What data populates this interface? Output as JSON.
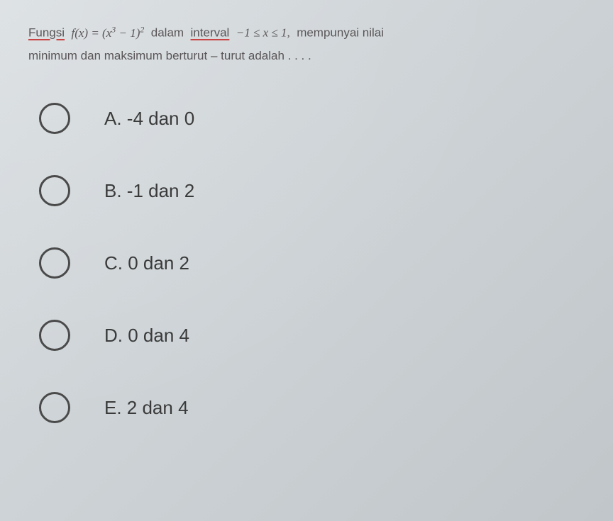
{
  "question": {
    "line1_parts": {
      "fungsi": "Fungsi",
      "formula": "f(x) = (x³ − 1)²",
      "dalam": "dalam",
      "interval": "interval",
      "range": "−1 ≤ x ≤ 1,",
      "mempunyai": "mempunyai  nilai"
    },
    "line2": "minimum dan maksimum berturut – turut adalah . . . ."
  },
  "options": [
    {
      "label": "A. -4 dan 0"
    },
    {
      "label": "B. -1 dan 2"
    },
    {
      "label": "C. 0 dan 2"
    },
    {
      "label": "D. 0 dan 4"
    },
    {
      "label": "E. 2 dan 4"
    }
  ],
  "styling": {
    "background_gradient_start": "#d8dde0",
    "background_gradient_end": "#c0c6c9",
    "question_text_color": "#5a5658",
    "option_text_color": "#3a3a3a",
    "radio_border_color": "#4a4a4a",
    "underline_color": "#c94545",
    "question_fontsize": 17,
    "option_fontsize": 26,
    "radio_size": 44,
    "radio_border_width": 3
  }
}
